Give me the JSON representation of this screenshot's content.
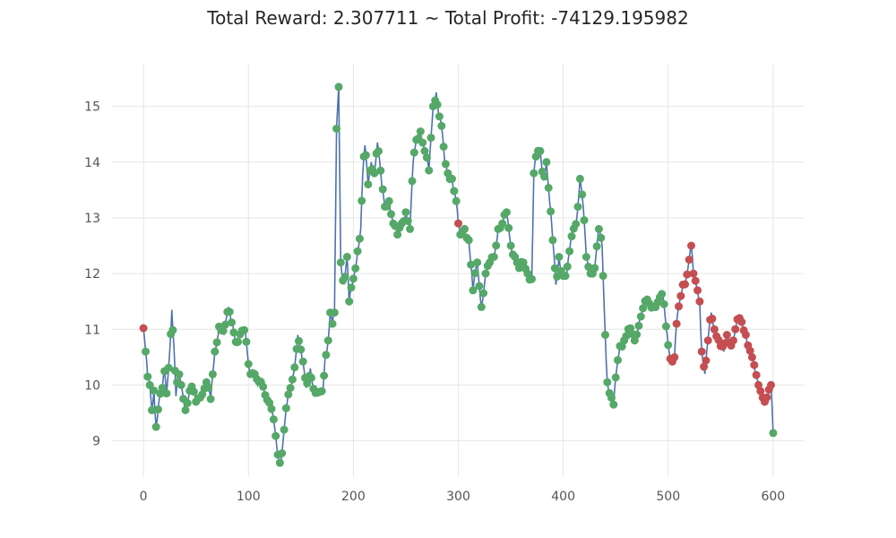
{
  "chart_data": {
    "type": "line",
    "title": "Total Reward: 2.307711 ~ Total Profit: -74129.195982",
    "xlabel": "",
    "ylabel": "",
    "xlim": [
      -30,
      630
    ],
    "ylim": [
      8.35,
      15.75
    ],
    "xticks": [
      0,
      100,
      200,
      300,
      400,
      500,
      600
    ],
    "yticks": [
      9,
      10,
      11,
      12,
      13,
      14,
      15
    ],
    "grid": true,
    "line_color": "#4c72b0",
    "marker_colors": {
      "buy": "#55a868",
      "sell": "#c44e52"
    },
    "anchors": [
      [
        0,
        11.02
      ],
      [
        2,
        10.6
      ],
      [
        4,
        10.15
      ],
      [
        6,
        10.0
      ],
      [
        8,
        9.55
      ],
      [
        10,
        9.9
      ],
      [
        12,
        9.25
      ],
      [
        15,
        9.75
      ],
      [
        18,
        9.95
      ],
      [
        20,
        10.25
      ],
      [
        22,
        9.85
      ],
      [
        25,
        10.6
      ],
      [
        27,
        11.35
      ],
      [
        29,
        10.7
      ],
      [
        31,
        9.8
      ],
      [
        33,
        10.2
      ],
      [
        36,
        10.0
      ],
      [
        40,
        9.55
      ],
      [
        45,
        10.0
      ],
      [
        50,
        9.7
      ],
      [
        55,
        9.85
      ],
      [
        60,
        10.05
      ],
      [
        64,
        9.75
      ],
      [
        68,
        10.6
      ],
      [
        72,
        11.05
      ],
      [
        76,
        10.9
      ],
      [
        80,
        11.4
      ],
      [
        84,
        11.1
      ],
      [
        88,
        10.7
      ],
      [
        92,
        10.9
      ],
      [
        96,
        11.0
      ],
      [
        100,
        10.25
      ],
      [
        104,
        10.2
      ],
      [
        108,
        10.0
      ],
      [
        112,
        10.1
      ],
      [
        116,
        9.8
      ],
      [
        120,
        9.6
      ],
      [
        124,
        9.25
      ],
      [
        127,
        8.75
      ],
      [
        130,
        8.62
      ],
      [
        133,
        9.2
      ],
      [
        136,
        9.7
      ],
      [
        140,
        10.0
      ],
      [
        144,
        10.5
      ],
      [
        146,
        10.9
      ],
      [
        150,
        10.5
      ],
      [
        154,
        9.95
      ],
      [
        158,
        10.3
      ],
      [
        162,
        9.85
      ],
      [
        166,
        9.8
      ],
      [
        170,
        9.9
      ],
      [
        172,
        10.5
      ],
      [
        175,
        10.8
      ],
      [
        177,
        11.3
      ],
      [
        179,
        11.1
      ],
      [
        181,
        11.3
      ],
      [
        183,
        14.6
      ],
      [
        185,
        15.35
      ],
      [
        187,
        12.2
      ],
      [
        190,
        11.8
      ],
      [
        193,
        12.3
      ],
      [
        195,
        11.5
      ],
      [
        198,
        11.8
      ],
      [
        200,
        12.0
      ],
      [
        203,
        12.4
      ],
      [
        206,
        12.8
      ],
      [
        208,
        13.8
      ],
      [
        210,
        14.3
      ],
      [
        213,
        13.6
      ],
      [
        216,
        14.0
      ],
      [
        219,
        13.8
      ],
      [
        222,
        14.35
      ],
      [
        225,
        13.6
      ],
      [
        228,
        13.2
      ],
      [
        232,
        13.3
      ],
      [
        236,
        12.9
      ],
      [
        240,
        12.7
      ],
      [
        244,
        12.9
      ],
      [
        248,
        13.1
      ],
      [
        252,
        12.8
      ],
      [
        255,
        14.0
      ],
      [
        258,
        14.4
      ],
      [
        262,
        14.55
      ],
      [
        266,
        14.2
      ],
      [
        270,
        13.85
      ],
      [
        274,
        15.0
      ],
      [
        277,
        15.25
      ],
      [
        279,
        14.9
      ],
      [
        282,
        14.65
      ],
      [
        285,
        14.0
      ],
      [
        288,
        13.8
      ],
      [
        292,
        13.7
      ],
      [
        296,
        13.3
      ],
      [
        298,
        12.9
      ],
      [
        300,
        12.7
      ],
      [
        304,
        12.8
      ],
      [
        308,
        12.6
      ],
      [
        312,
        11.7
      ],
      [
        316,
        12.2
      ],
      [
        320,
        11.4
      ],
      [
        324,
        12.0
      ],
      [
        328,
        12.2
      ],
      [
        332,
        12.3
      ],
      [
        336,
        12.8
      ],
      [
        340,
        12.9
      ],
      [
        344,
        13.1
      ],
      [
        348,
        12.5
      ],
      [
        352,
        12.3
      ],
      [
        356,
        12.1
      ],
      [
        360,
        12.2
      ],
      [
        364,
        12.0
      ],
      [
        368,
        11.9
      ],
      [
        370,
        13.8
      ],
      [
        372,
        14.1
      ],
      [
        375,
        14.2
      ],
      [
        378,
        13.7
      ],
      [
        381,
        14.0
      ],
      [
        384,
        13.3
      ],
      [
        387,
        12.6
      ],
      [
        390,
        11.8
      ],
      [
        393,
        12.3
      ],
      [
        396,
        12.0
      ],
      [
        400,
        11.9
      ],
      [
        403,
        12.4
      ],
      [
        406,
        12.8
      ],
      [
        410,
        13.0
      ],
      [
        413,
        13.7
      ],
      [
        416,
        13.2
      ],
      [
        419,
        12.3
      ],
      [
        423,
        12.0
      ],
      [
        427,
        12.1
      ],
      [
        431,
        12.8
      ],
      [
        434,
        12.5
      ],
      [
        437,
        10.9
      ],
      [
        439,
        10.05
      ],
      [
        442,
        9.8
      ],
      [
        445,
        9.65
      ],
      [
        448,
        10.3
      ],
      [
        451,
        10.7
      ],
      [
        455,
        10.8
      ],
      [
        460,
        11.0
      ],
      [
        465,
        10.8
      ],
      [
        470,
        11.2
      ],
      [
        476,
        11.5
      ],
      [
        483,
        11.4
      ],
      [
        488,
        11.5
      ],
      [
        492,
        11.6
      ],
      [
        496,
        10.9
      ],
      [
        500,
        10.4
      ],
      [
        503,
        10.5
      ],
      [
        505,
        11.1
      ],
      [
        508,
        11.5
      ],
      [
        511,
        11.8
      ],
      [
        514,
        11.9
      ],
      [
        517,
        12.25
      ],
      [
        519,
        12.5
      ],
      [
        521,
        12.0
      ],
      [
        524,
        11.7
      ],
      [
        526,
        11.5
      ],
      [
        528,
        10.6
      ],
      [
        531,
        10.2
      ],
      [
        534,
        10.8
      ],
      [
        537,
        11.3
      ],
      [
        540,
        11.0
      ],
      [
        543,
        10.9
      ],
      [
        546,
        10.7
      ],
      [
        549,
        10.6
      ],
      [
        552,
        10.9
      ],
      [
        555,
        10.75
      ],
      [
        558,
        10.8
      ],
      [
        561,
        11.1
      ],
      [
        564,
        11.2
      ],
      [
        567,
        11.05
      ],
      [
        570,
        10.9
      ],
      [
        573,
        10.7
      ],
      [
        576,
        10.5
      ],
      [
        579,
        10.2
      ],
      [
        582,
        10.0
      ],
      [
        585,
        9.9
      ],
      [
        588,
        9.7
      ],
      [
        591,
        9.8
      ],
      [
        594,
        10.0
      ],
      [
        596,
        9.14
      ]
    ],
    "sell_segments": [
      [
        3,
        3
      ],
      [
        300,
        300
      ],
      [
        501,
        598
      ]
    ]
  }
}
